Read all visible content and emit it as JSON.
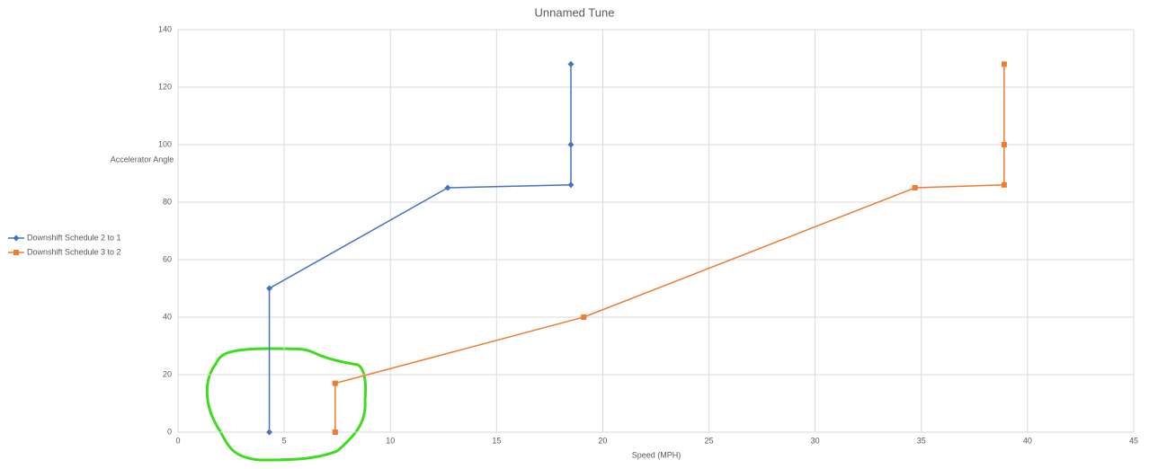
{
  "chart_data": {
    "type": "scatter-line",
    "title": "Unnamed Tune",
    "x_label": "Speed (MPH)",
    "y_label": "Accelerator Angle",
    "xlim": [
      0,
      45
    ],
    "xticks": [
      0,
      5,
      10,
      15,
      20,
      25,
      30,
      35,
      40,
      45
    ],
    "ylim": [
      0,
      140
    ],
    "yticks": [
      0,
      20,
      40,
      60,
      80,
      100,
      120,
      140
    ],
    "grid": true,
    "legend": "left",
    "series": [
      {
        "name": "Downshift Schedule 2 to 1",
        "color": "#4472c4",
        "marker": "diamond",
        "x": [
          4.3,
          4.3,
          12.7,
          18.5,
          18.5,
          18.5
        ],
        "values": [
          0,
          50,
          85,
          86,
          100,
          128
        ]
      },
      {
        "name": "Downshift Schedule 3 to 2",
        "color": "#ed7d31",
        "marker": "square",
        "x": [
          7.4,
          7.4,
          19.1,
          34.7,
          38.9,
          38.9,
          38.9
        ],
        "values": [
          0,
          17,
          40,
          85,
          86,
          100,
          128
        ]
      }
    ]
  }
}
